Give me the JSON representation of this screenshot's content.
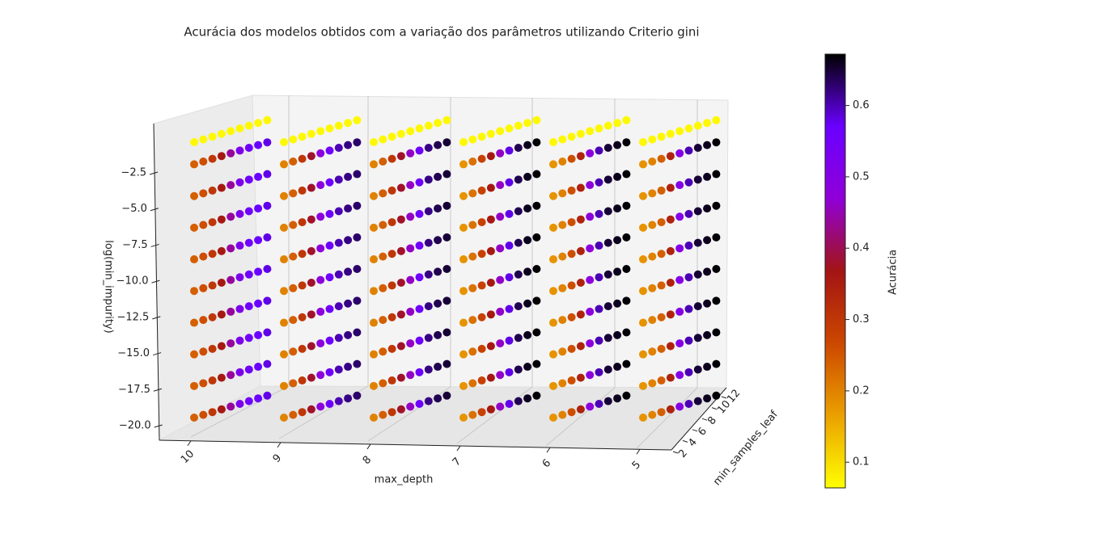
{
  "chart_data": {
    "type": "scatter3d",
    "title": "Acurácia dos modelos obtidos com a variação dos parâmetros utilizando Criterio gini",
    "xlabel": "max_depth",
    "ylabel": "min_samples_leaf",
    "zlabel": "log(min_impurity)",
    "colorbar_label": "Acurácia",
    "x": [
      10,
      9,
      8,
      7,
      6,
      5
    ],
    "y": [
      2,
      3,
      4,
      5,
      6,
      7,
      8,
      9,
      10
    ],
    "yticks": [
      2,
      4,
      6,
      8,
      10,
      12
    ],
    "z": [
      -0.69,
      -2.3,
      -4.61,
      -6.91,
      -9.21,
      -11.51,
      -13.82,
      -16.12,
      -18.42,
      -20.72
    ],
    "zticks": [
      {
        "value": -2.5,
        "label": "−2.5"
      },
      {
        "value": -5,
        "label": "−5.0"
      },
      {
        "value": -7.5,
        "label": "−7.5"
      },
      {
        "value": -10,
        "label": "−10.0"
      },
      {
        "value": -12.5,
        "label": "−12.5"
      },
      {
        "value": -15,
        "label": "−15.0"
      },
      {
        "value": -17.5,
        "label": "−17.5"
      },
      {
        "value": -20,
        "label": "−20.0"
      }
    ],
    "clim": [
      0.064,
      0.672
    ],
    "cticks": [
      0.1,
      0.2,
      0.3,
      0.4,
      0.5,
      0.6
    ],
    "colormap": [
      "#ffff00",
      "#eba000",
      "#cc4800",
      "#a31414",
      "#9000d8",
      "#6a00ff",
      "#000000"
    ],
    "values": [
      [
        [
          0.07,
          0.07,
          0.07,
          0.07,
          0.07,
          0.07,
          0.07,
          0.07,
          0.07
        ],
        [
          0.24,
          0.26,
          0.3,
          0.36,
          0.44,
          0.52,
          0.56,
          0.57,
          0.58
        ],
        [
          0.24,
          0.26,
          0.3,
          0.36,
          0.44,
          0.52,
          0.56,
          0.57,
          0.58
        ],
        [
          0.24,
          0.26,
          0.3,
          0.36,
          0.44,
          0.52,
          0.56,
          0.57,
          0.58
        ],
        [
          0.24,
          0.26,
          0.3,
          0.36,
          0.44,
          0.52,
          0.56,
          0.57,
          0.58
        ],
        [
          0.24,
          0.26,
          0.3,
          0.36,
          0.44,
          0.52,
          0.56,
          0.57,
          0.58
        ],
        [
          0.24,
          0.26,
          0.3,
          0.36,
          0.44,
          0.52,
          0.56,
          0.57,
          0.58
        ],
        [
          0.24,
          0.26,
          0.3,
          0.36,
          0.44,
          0.52,
          0.56,
          0.57,
          0.58
        ],
        [
          0.24,
          0.26,
          0.3,
          0.36,
          0.44,
          0.52,
          0.56,
          0.57,
          0.58
        ],
        [
          0.24,
          0.26,
          0.3,
          0.36,
          0.44,
          0.52,
          0.56,
          0.57,
          0.58
        ]
      ],
      [
        [
          0.07,
          0.07,
          0.07,
          0.07,
          0.07,
          0.07,
          0.07,
          0.07,
          0.07
        ],
        [
          0.2,
          0.24,
          0.3,
          0.38,
          0.48,
          0.56,
          0.6,
          0.62,
          0.63
        ],
        [
          0.2,
          0.24,
          0.3,
          0.38,
          0.48,
          0.56,
          0.6,
          0.62,
          0.63
        ],
        [
          0.2,
          0.24,
          0.3,
          0.38,
          0.48,
          0.56,
          0.6,
          0.62,
          0.63
        ],
        [
          0.2,
          0.24,
          0.3,
          0.38,
          0.48,
          0.56,
          0.6,
          0.62,
          0.63
        ],
        [
          0.2,
          0.24,
          0.3,
          0.38,
          0.48,
          0.56,
          0.6,
          0.62,
          0.63
        ],
        [
          0.2,
          0.24,
          0.3,
          0.38,
          0.48,
          0.56,
          0.6,
          0.62,
          0.63
        ],
        [
          0.2,
          0.24,
          0.3,
          0.38,
          0.48,
          0.56,
          0.6,
          0.62,
          0.63
        ],
        [
          0.2,
          0.24,
          0.3,
          0.38,
          0.48,
          0.56,
          0.6,
          0.62,
          0.63
        ],
        [
          0.2,
          0.24,
          0.3,
          0.38,
          0.48,
          0.56,
          0.6,
          0.62,
          0.63
        ]
      ],
      [
        [
          0.07,
          0.07,
          0.07,
          0.07,
          0.07,
          0.07,
          0.07,
          0.07,
          0.07
        ],
        [
          0.2,
          0.24,
          0.3,
          0.38,
          0.46,
          0.56,
          0.62,
          0.64,
          0.65
        ],
        [
          0.2,
          0.24,
          0.3,
          0.38,
          0.46,
          0.56,
          0.62,
          0.64,
          0.65
        ],
        [
          0.2,
          0.24,
          0.3,
          0.38,
          0.46,
          0.56,
          0.62,
          0.64,
          0.65
        ],
        [
          0.2,
          0.24,
          0.3,
          0.38,
          0.46,
          0.56,
          0.62,
          0.64,
          0.65
        ],
        [
          0.2,
          0.24,
          0.3,
          0.38,
          0.46,
          0.56,
          0.62,
          0.64,
          0.65
        ],
        [
          0.2,
          0.24,
          0.3,
          0.38,
          0.46,
          0.56,
          0.62,
          0.64,
          0.65
        ],
        [
          0.2,
          0.24,
          0.3,
          0.38,
          0.46,
          0.56,
          0.62,
          0.64,
          0.65
        ],
        [
          0.2,
          0.24,
          0.3,
          0.38,
          0.46,
          0.56,
          0.62,
          0.64,
          0.65
        ],
        [
          0.2,
          0.24,
          0.3,
          0.38,
          0.46,
          0.56,
          0.62,
          0.64,
          0.65
        ]
      ],
      [
        [
          0.07,
          0.07,
          0.07,
          0.07,
          0.07,
          0.07,
          0.07,
          0.07,
          0.07
        ],
        [
          0.18,
          0.22,
          0.28,
          0.36,
          0.46,
          0.58,
          0.64,
          0.66,
          0.67
        ],
        [
          0.18,
          0.22,
          0.28,
          0.36,
          0.46,
          0.58,
          0.64,
          0.66,
          0.67
        ],
        [
          0.18,
          0.22,
          0.28,
          0.36,
          0.46,
          0.58,
          0.64,
          0.66,
          0.67
        ],
        [
          0.18,
          0.22,
          0.28,
          0.36,
          0.46,
          0.58,
          0.64,
          0.66,
          0.67
        ],
        [
          0.18,
          0.22,
          0.28,
          0.36,
          0.46,
          0.58,
          0.64,
          0.66,
          0.67
        ],
        [
          0.18,
          0.22,
          0.28,
          0.36,
          0.46,
          0.58,
          0.64,
          0.66,
          0.67
        ],
        [
          0.18,
          0.22,
          0.28,
          0.36,
          0.46,
          0.58,
          0.64,
          0.66,
          0.67
        ],
        [
          0.18,
          0.22,
          0.28,
          0.36,
          0.46,
          0.58,
          0.64,
          0.66,
          0.67
        ],
        [
          0.18,
          0.22,
          0.28,
          0.36,
          0.46,
          0.58,
          0.64,
          0.66,
          0.67
        ]
      ],
      [
        [
          0.07,
          0.07,
          0.07,
          0.07,
          0.07,
          0.07,
          0.07,
          0.07,
          0.07
        ],
        [
          0.18,
          0.2,
          0.26,
          0.34,
          0.48,
          0.6,
          0.65,
          0.66,
          0.67
        ],
        [
          0.18,
          0.2,
          0.26,
          0.34,
          0.48,
          0.6,
          0.65,
          0.66,
          0.67
        ],
        [
          0.18,
          0.2,
          0.26,
          0.34,
          0.48,
          0.6,
          0.65,
          0.66,
          0.67
        ],
        [
          0.18,
          0.2,
          0.26,
          0.34,
          0.48,
          0.6,
          0.65,
          0.66,
          0.67
        ],
        [
          0.18,
          0.2,
          0.26,
          0.34,
          0.48,
          0.6,
          0.65,
          0.66,
          0.67
        ],
        [
          0.18,
          0.2,
          0.26,
          0.34,
          0.48,
          0.6,
          0.65,
          0.66,
          0.67
        ],
        [
          0.18,
          0.2,
          0.26,
          0.34,
          0.48,
          0.6,
          0.65,
          0.66,
          0.67
        ],
        [
          0.18,
          0.2,
          0.26,
          0.34,
          0.48,
          0.6,
          0.65,
          0.66,
          0.67
        ],
        [
          0.18,
          0.2,
          0.26,
          0.34,
          0.48,
          0.6,
          0.65,
          0.66,
          0.67
        ]
      ],
      [
        [
          0.07,
          0.07,
          0.07,
          0.07,
          0.07,
          0.07,
          0.07,
          0.07,
          0.07
        ],
        [
          0.18,
          0.2,
          0.24,
          0.34,
          0.5,
          0.6,
          0.65,
          0.66,
          0.67
        ],
        [
          0.18,
          0.2,
          0.24,
          0.34,
          0.5,
          0.6,
          0.65,
          0.66,
          0.67
        ],
        [
          0.18,
          0.2,
          0.24,
          0.34,
          0.5,
          0.6,
          0.65,
          0.66,
          0.67
        ],
        [
          0.18,
          0.2,
          0.24,
          0.34,
          0.5,
          0.6,
          0.65,
          0.66,
          0.67
        ],
        [
          0.18,
          0.2,
          0.24,
          0.34,
          0.5,
          0.6,
          0.65,
          0.66,
          0.67
        ],
        [
          0.18,
          0.2,
          0.24,
          0.34,
          0.5,
          0.6,
          0.65,
          0.66,
          0.67
        ],
        [
          0.18,
          0.2,
          0.24,
          0.34,
          0.5,
          0.6,
          0.65,
          0.66,
          0.67
        ],
        [
          0.18,
          0.2,
          0.24,
          0.34,
          0.5,
          0.6,
          0.65,
          0.66,
          0.67
        ],
        [
          0.18,
          0.2,
          0.24,
          0.34,
          0.5,
          0.6,
          0.65,
          0.66,
          0.67
        ]
      ]
    ]
  }
}
